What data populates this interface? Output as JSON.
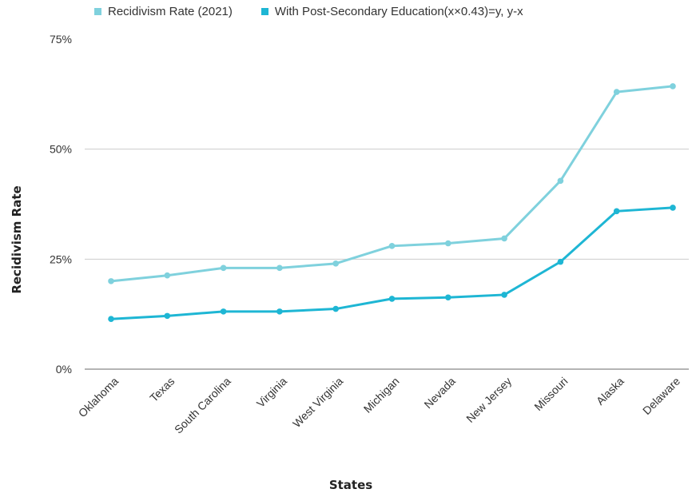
{
  "chart_data": {
    "type": "line",
    "categories": [
      "Oklahoma",
      "Texas",
      "South Carolina",
      "Virginia",
      "West Virginia",
      "Michigan",
      "Nevada",
      "New Jersey",
      "Missouri",
      "Alaska",
      "Delaware"
    ],
    "series": [
      {
        "name": "Recidivism Rate (2021)",
        "color": "#7fd1dd",
        "values": [
          20.0,
          21.3,
          23.0,
          23.0,
          24.0,
          28.0,
          28.6,
          29.7,
          42.8,
          63.0,
          64.3
        ]
      },
      {
        "name": "With Post-Secondary Education(x×0.43)=y, y-x",
        "color": "#1eb6d4",
        "values": [
          11.4,
          12.1,
          13.1,
          13.1,
          13.7,
          16.0,
          16.3,
          16.9,
          24.4,
          35.9,
          36.7
        ]
      }
    ],
    "xlabel": "States",
    "ylabel": "Recidivism Rate",
    "ylim": [
      0,
      75
    ],
    "yticks": [
      0,
      25,
      50,
      75
    ],
    "ytick_labels": [
      "0%",
      "25%",
      "50%",
      "75%"
    ],
    "grid": true,
    "legend_position": "top"
  }
}
